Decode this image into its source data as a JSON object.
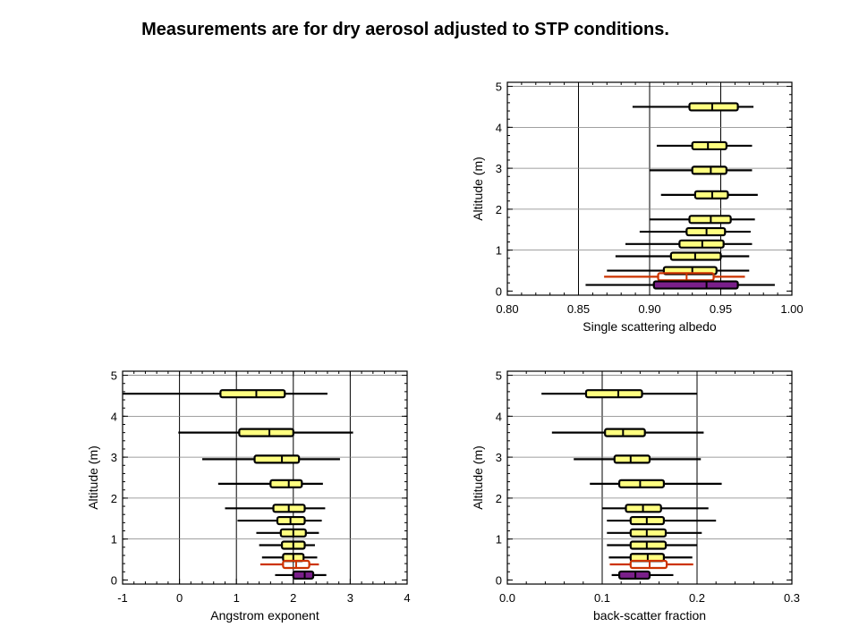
{
  "title": "Measurements are for dry aerosol adjusted to STP conditions.",
  "colors": {
    "normal": "#ffff80",
    "red": "#cc3300",
    "purple": "#7a1f8a",
    "grid": "#000000"
  },
  "chart_data": [
    {
      "id": "ssa",
      "type": "box",
      "orientation": "horizontal",
      "title": "",
      "xlabel": "Single scattering albedo",
      "ylabel": "Altitude (m)",
      "xlim": [
        0.8,
        1.0
      ],
      "ylim": [
        -0.1,
        5.1
      ],
      "xticks": [
        0.8,
        0.85,
        0.9,
        0.95,
        1.0
      ],
      "xtick_labels": [
        "0.80",
        "0.85",
        "0.90",
        "0.95",
        "1.00"
      ],
      "yticks": [
        0,
        1,
        2,
        3,
        4,
        5
      ],
      "ytick_labels": [
        "0",
        "1",
        "2",
        "3",
        "4",
        "5"
      ],
      "vgrid": [
        0.85,
        0.9,
        0.95
      ],
      "hgrid": [
        1,
        2,
        3,
        4,
        5
      ],
      "boxes": [
        {
          "y": 4.5,
          "wmin": 0.888,
          "q1": 0.928,
          "med": 0.944,
          "q3": 0.962,
          "wmax": 0.973,
          "color": "normal"
        },
        {
          "y": 3.55,
          "wmin": 0.905,
          "q1": 0.93,
          "med": 0.941,
          "q3": 0.954,
          "wmax": 0.972,
          "color": "normal"
        },
        {
          "y": 2.95,
          "wmin": 0.9,
          "q1": 0.93,
          "med": 0.943,
          "q3": 0.954,
          "wmax": 0.972,
          "color": "normal"
        },
        {
          "y": 2.35,
          "wmin": 0.908,
          "q1": 0.932,
          "med": 0.944,
          "q3": 0.955,
          "wmax": 0.976,
          "color": "normal"
        },
        {
          "y": 1.75,
          "wmin": 0.9,
          "q1": 0.928,
          "med": 0.943,
          "q3": 0.957,
          "wmax": 0.974,
          "color": "normal"
        },
        {
          "y": 1.45,
          "wmin": 0.893,
          "q1": 0.926,
          "med": 0.94,
          "q3": 0.953,
          "wmax": 0.971,
          "color": "normal"
        },
        {
          "y": 1.15,
          "wmin": 0.883,
          "q1": 0.921,
          "med": 0.937,
          "q3": 0.952,
          "wmax": 0.972,
          "color": "normal"
        },
        {
          "y": 0.85,
          "wmin": 0.876,
          "q1": 0.915,
          "med": 0.932,
          "q3": 0.95,
          "wmax": 0.97,
          "color": "normal"
        },
        {
          "y": 0.5,
          "wmin": 0.87,
          "q1": 0.91,
          "med": 0.93,
          "q3": 0.947,
          "wmax": 0.97,
          "color": "normal"
        },
        {
          "y": 0.35,
          "wmin": 0.868,
          "q1": 0.906,
          "med": 0.926,
          "q3": 0.945,
          "wmax": 0.967,
          "color": "red"
        },
        {
          "y": 0.15,
          "wmin": 0.855,
          "q1": 0.903,
          "med": 0.94,
          "q3": 0.962,
          "wmax": 0.988,
          "color": "purple"
        }
      ]
    },
    {
      "id": "ang",
      "type": "box",
      "orientation": "horizontal",
      "title": "",
      "xlabel": "Angstrom exponent",
      "ylabel": "Altitude (m)",
      "xlim": [
        -1,
        4
      ],
      "ylim": [
        -0.1,
        5.1
      ],
      "xticks": [
        -1,
        0,
        1,
        2,
        3,
        4
      ],
      "xtick_labels": [
        "-1",
        "0",
        "1",
        "2",
        "3",
        "4"
      ],
      "yticks": [
        0,
        1,
        2,
        3,
        4,
        5
      ],
      "ytick_labels": [
        "0",
        "1",
        "2",
        "3",
        "4",
        "5"
      ],
      "vgrid": [
        0,
        1,
        2,
        3
      ],
      "hgrid": [
        1,
        2,
        3,
        4,
        5
      ],
      "boxes": [
        {
          "y": 4.55,
          "wmin": -1.0,
          "q1": 0.72,
          "med": 1.35,
          "q3": 1.85,
          "wmax": 2.6,
          "color": "normal"
        },
        {
          "y": 3.6,
          "wmin": -0.02,
          "q1": 1.05,
          "med": 1.58,
          "q3": 2.0,
          "wmax": 3.05,
          "color": "normal"
        },
        {
          "y": 2.95,
          "wmin": 0.4,
          "q1": 1.32,
          "med": 1.8,
          "q3": 2.1,
          "wmax": 2.82,
          "color": "normal"
        },
        {
          "y": 2.35,
          "wmin": 0.68,
          "q1": 1.6,
          "med": 1.92,
          "q3": 2.15,
          "wmax": 2.52,
          "color": "normal"
        },
        {
          "y": 1.75,
          "wmin": 0.8,
          "q1": 1.65,
          "med": 1.92,
          "q3": 2.2,
          "wmax": 2.56,
          "color": "normal"
        },
        {
          "y": 1.45,
          "wmin": 1.02,
          "q1": 1.72,
          "med": 1.95,
          "q3": 2.2,
          "wmax": 2.5,
          "color": "normal"
        },
        {
          "y": 1.15,
          "wmin": 1.35,
          "q1": 1.78,
          "med": 2.0,
          "q3": 2.22,
          "wmax": 2.45,
          "color": "normal"
        },
        {
          "y": 0.85,
          "wmin": 1.4,
          "q1": 1.8,
          "med": 2.0,
          "q3": 2.2,
          "wmax": 2.38,
          "color": "normal"
        },
        {
          "y": 0.55,
          "wmin": 1.45,
          "q1": 1.82,
          "med": 2.0,
          "q3": 2.18,
          "wmax": 2.42,
          "color": "normal"
        },
        {
          "y": 0.38,
          "wmin": 1.42,
          "q1": 1.82,
          "med": 2.05,
          "q3": 2.28,
          "wmax": 2.45,
          "color": "red"
        },
        {
          "y": 0.12,
          "wmin": 1.68,
          "q1": 2.0,
          "med": 2.2,
          "q3": 2.35,
          "wmax": 2.58,
          "color": "purple"
        }
      ]
    },
    {
      "id": "bsf",
      "type": "box",
      "orientation": "horizontal",
      "title": "",
      "xlabel": "back-scatter fraction",
      "ylabel": "Altitude (m)",
      "xlim": [
        0.0,
        0.3
      ],
      "ylim": [
        -0.1,
        5.1
      ],
      "xticks": [
        0.0,
        0.1,
        0.2,
        0.3
      ],
      "xtick_labels": [
        "0.0",
        "0.1",
        "0.2",
        "0.3"
      ],
      "yticks": [
        0,
        1,
        2,
        3,
        4,
        5
      ],
      "ytick_labels": [
        "0",
        "1",
        "2",
        "3",
        "4",
        "5"
      ],
      "vgrid": [
        0.1,
        0.2
      ],
      "hgrid": [
        1,
        2,
        3,
        4,
        5
      ],
      "boxes": [
        {
          "y": 4.55,
          "wmin": 0.036,
          "q1": 0.083,
          "med": 0.117,
          "q3": 0.142,
          "wmax": 0.2,
          "color": "normal"
        },
        {
          "y": 3.6,
          "wmin": 0.047,
          "q1": 0.103,
          "med": 0.122,
          "q3": 0.145,
          "wmax": 0.207,
          "color": "normal"
        },
        {
          "y": 2.95,
          "wmin": 0.07,
          "q1": 0.113,
          "med": 0.13,
          "q3": 0.15,
          "wmax": 0.204,
          "color": "normal"
        },
        {
          "y": 2.35,
          "wmin": 0.087,
          "q1": 0.118,
          "med": 0.14,
          "q3": 0.165,
          "wmax": 0.226,
          "color": "normal"
        },
        {
          "y": 1.75,
          "wmin": 0.1,
          "q1": 0.125,
          "med": 0.143,
          "q3": 0.162,
          "wmax": 0.212,
          "color": "normal"
        },
        {
          "y": 1.45,
          "wmin": 0.105,
          "q1": 0.13,
          "med": 0.147,
          "q3": 0.165,
          "wmax": 0.22,
          "color": "normal"
        },
        {
          "y": 1.15,
          "wmin": 0.105,
          "q1": 0.13,
          "med": 0.147,
          "q3": 0.167,
          "wmax": 0.205,
          "color": "normal"
        },
        {
          "y": 0.85,
          "wmin": 0.105,
          "q1": 0.13,
          "med": 0.147,
          "q3": 0.167,
          "wmax": 0.2,
          "color": "normal"
        },
        {
          "y": 0.55,
          "wmin": 0.107,
          "q1": 0.13,
          "med": 0.148,
          "q3": 0.165,
          "wmax": 0.195,
          "color": "normal"
        },
        {
          "y": 0.38,
          "wmin": 0.108,
          "q1": 0.13,
          "med": 0.15,
          "q3": 0.168,
          "wmax": 0.196,
          "color": "red"
        },
        {
          "y": 0.12,
          "wmin": 0.11,
          "q1": 0.118,
          "med": 0.135,
          "q3": 0.15,
          "wmax": 0.175,
          "color": "purple"
        }
      ]
    }
  ]
}
